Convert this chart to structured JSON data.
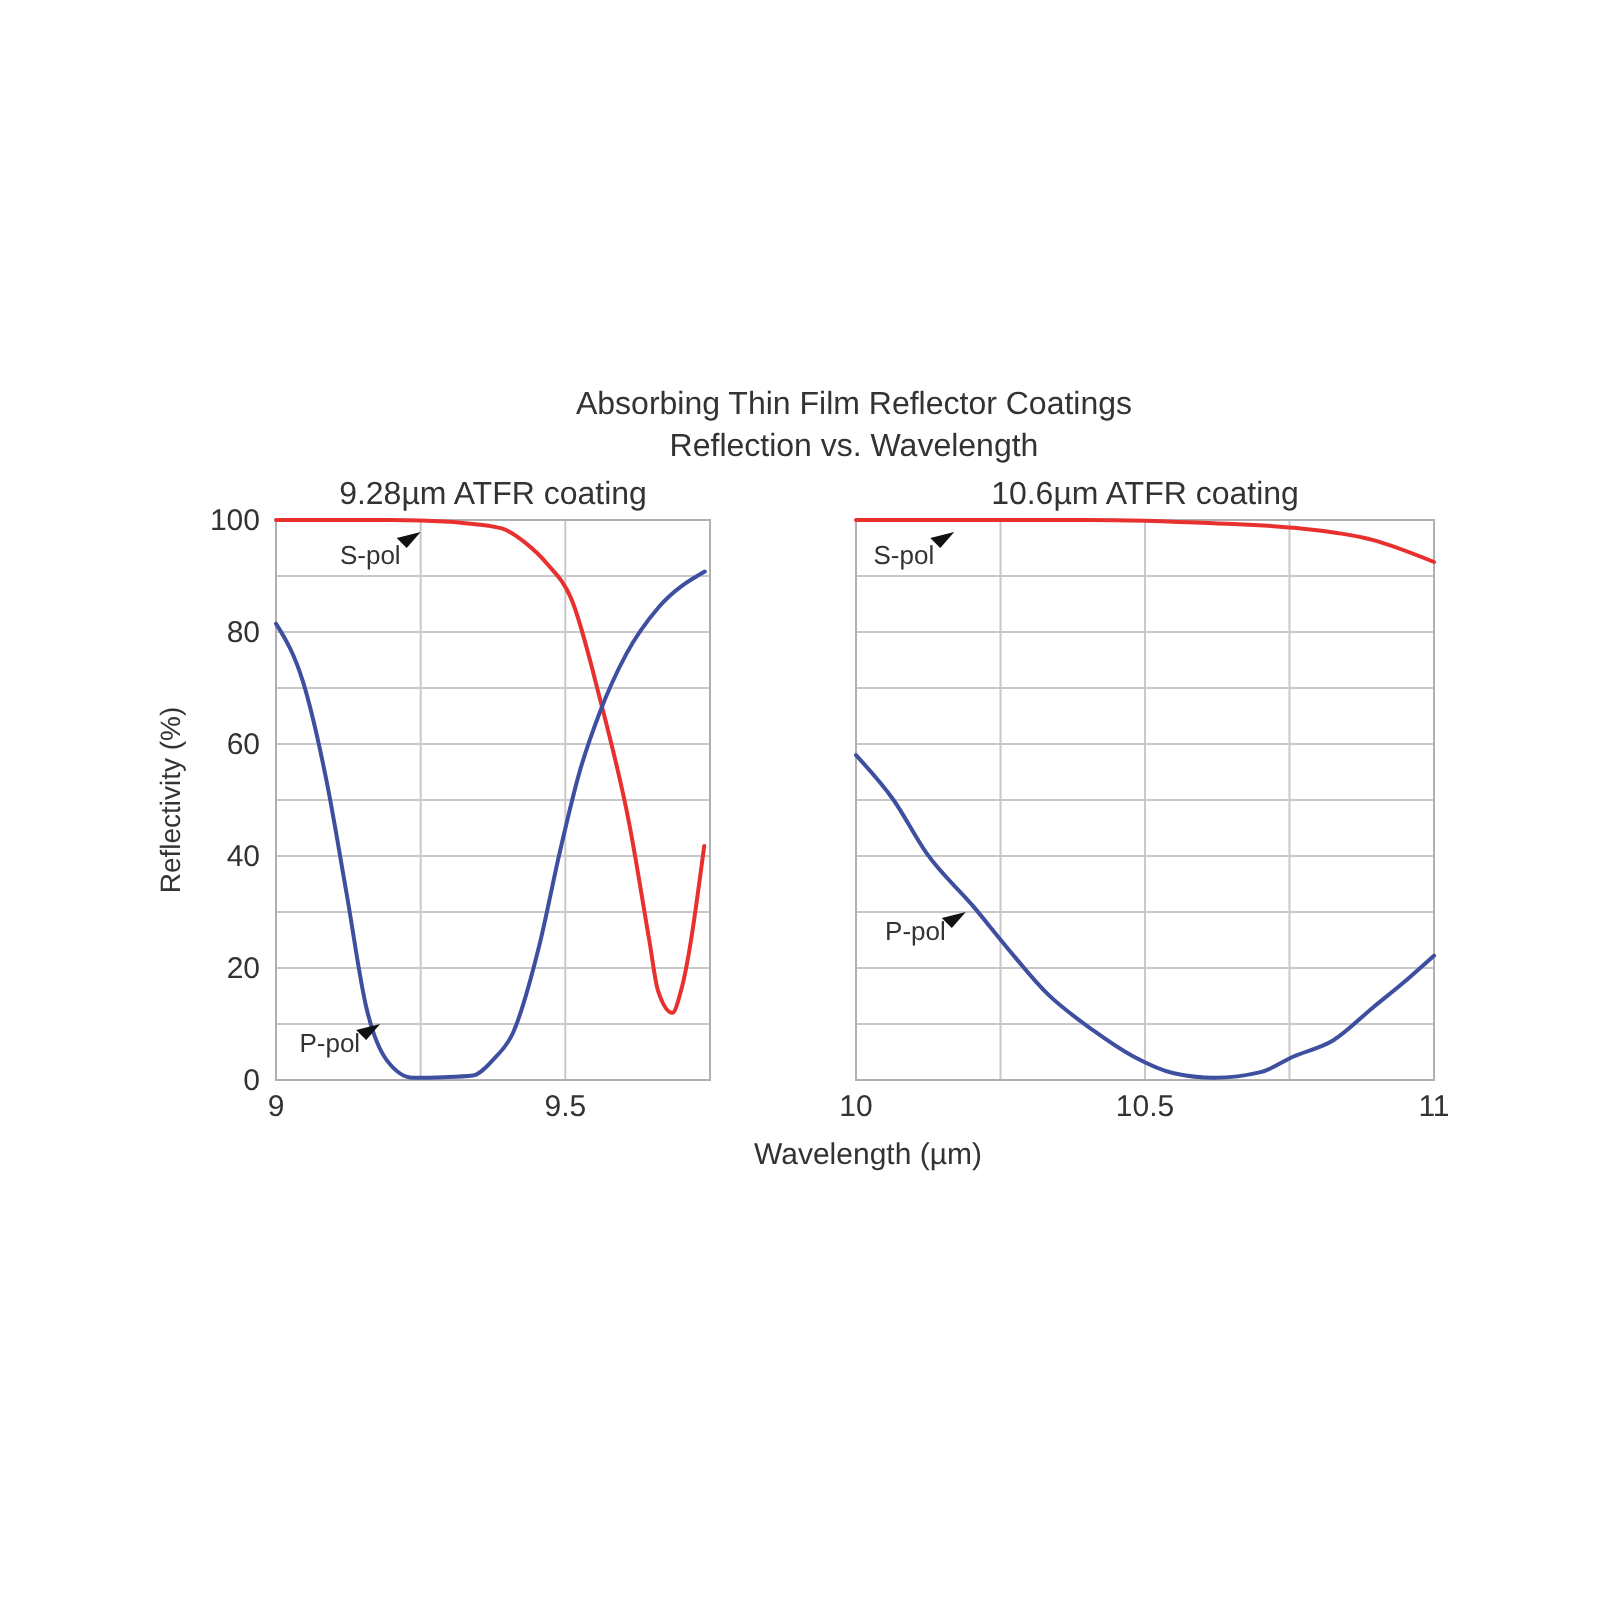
{
  "chart_data": [
    {
      "type": "line",
      "title": "Absorbing Thin Film Reflector Coatings\nReflection vs. Wavelength",
      "subtitle": "9.28µm ATFR coating",
      "ylabel": "Reflectivity (%)",
      "xlim": [
        9,
        9.75
      ],
      "xticks": [
        9,
        {
          "value": 9.25,
          "label": null
        },
        9.5,
        {
          "value": 9.75,
          "label": null
        }
      ],
      "ylim": [
        0,
        100
      ],
      "yticks": [
        0,
        {
          "value": 10,
          "label": null
        },
        20,
        {
          "value": 30,
          "label": null
        },
        40,
        {
          "value": 50,
          "label": null
        },
        60,
        {
          "value": 70,
          "label": null
        },
        80,
        {
          "value": 90,
          "label": null
        },
        100
      ],
      "grid": true,
      "series": [
        {
          "color": "#e8312f",
          "x": [
            9,
            9.1,
            9.2,
            9.3,
            9.32,
            9.39,
            9.43,
            9.47,
            9.51,
            9.56,
            9.61,
            9.645,
            9.66,
            9.685,
            9.7,
            9.74
          ],
          "values": [
            100,
            100,
            100,
            99.7,
            99.5,
            98.5,
            96,
            92,
            86,
            68,
            46,
            25,
            16,
            12,
            16,
            41.8
          ]
        },
        {
          "color": "#3f4fa0",
          "x": [
            9,
            9.047,
            9.087,
            9.122,
            9.156,
            9.191,
            9.237,
            9.29,
            9.34,
            9.375,
            9.409,
            9.455,
            9.49,
            9.524,
            9.559,
            9.605,
            9.662,
            9.741
          ],
          "values": [
            81.5,
            71,
            53.6,
            33.3,
            13,
            3.6,
            0.4,
            0.5,
            0.8,
            3.6,
            8.3,
            24,
            40.5,
            54.8,
            65.5,
            76,
            84.5,
            90.8
          ]
        }
      ],
      "annotations": [
        {
          "text": "S-pol",
          "x": 9.25,
          "y": 100
        },
        {
          "text": "P-pol",
          "x": 9.18,
          "y": 10
        }
      ]
    },
    {
      "type": "line",
      "subtitle": "10.6µm ATFR coating",
      "xlabel": "Wavelength (µm)",
      "xlim": [
        10,
        11
      ],
      "xticks": [
        10,
        {
          "value": 10.25,
          "label": null
        },
        10.5,
        {
          "value": 10.75,
          "label": null
        },
        11
      ],
      "ylim": [
        0,
        100
      ],
      "yticks": [
        0,
        10,
        20,
        30,
        40,
        50,
        60,
        70,
        80,
        90,
        100
      ],
      "tick_labels": "x",
      "grid": true,
      "series": [
        {
          "color": "#e8312f",
          "x": [
            10,
            10.2,
            10.4,
            10.62,
            10.757,
            10.895,
            11
          ],
          "values": [
            100,
            100,
            100,
            99.4,
            98.6,
            96.4,
            92.5
          ]
        },
        {
          "color": "#3f4fa0",
          "x": [
            10,
            10.065,
            10.122,
            10.203,
            10.26,
            10.33,
            10.41,
            10.48,
            10.55,
            10.62,
            10.7,
            10.757,
            10.826,
            10.895,
            10.953,
            11
          ],
          "values": [
            58,
            50,
            40.5,
            31,
            23.8,
            15.5,
            8.9,
            4.2,
            1.2,
            0.4,
            1.4,
            4.2,
            7.1,
            13,
            17.9,
            22.2
          ]
        }
      ],
      "annotations": [
        {
          "text": "S-pol",
          "x": 10.17,
          "y": 100
        },
        {
          "text": "P-pol",
          "x": 10.19,
          "y": 30
        }
      ]
    }
  ]
}
